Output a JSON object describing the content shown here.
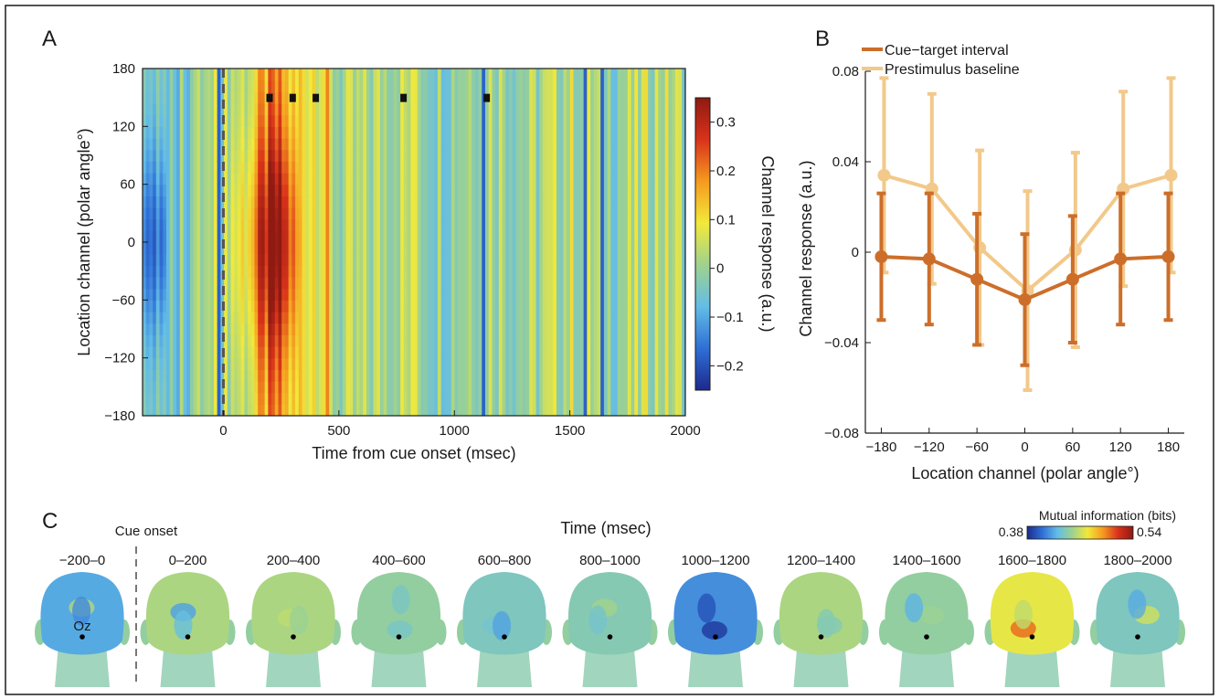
{
  "panels": {
    "a_label": "A",
    "b_label": "B",
    "c_label": "C"
  },
  "chart_data": [
    {
      "type": "heatmap",
      "panel": "A",
      "xlabel": "Time from cue onset (msec)",
      "ylabel": "Location channel (polar angle°)",
      "xlim": [
        -350,
        2000
      ],
      "ylim": [
        -180,
        180
      ],
      "x_ticks": [
        0,
        500,
        1000,
        1500,
        2000
      ],
      "y_ticks": [
        -180,
        -120,
        -60,
        0,
        60,
        120,
        180
      ],
      "cue_onset_line_x": 0,
      "significant_times": [
        200,
        300,
        400,
        780,
        1140
      ],
      "colorbar": {
        "label": "Channel response (a.u.)",
        "ticks": [
          -0.2,
          -0.1,
          0,
          0.1,
          0.2,
          0.3
        ],
        "range": [
          -0.25,
          0.35
        ],
        "colormap": [
          "#1c2a8c",
          "#2f6fd6",
          "#63bde6",
          "#9fd28e",
          "#f2e93a",
          "#f59a1f",
          "#d9321b",
          "#8e1a12"
        ]
      }
    },
    {
      "type": "line",
      "panel": "B",
      "xlabel": "Location channel (polar angle°)",
      "ylabel": "Channel response (a.u.)",
      "x": [
        -180,
        -120,
        -60,
        0,
        60,
        120,
        180
      ],
      "x_tick_labels": [
        "−180",
        "−120",
        "−60",
        "0",
        "60",
        "120",
        "180"
      ],
      "xlim": [
        -200,
        200
      ],
      "ylim": [
        -0.08,
        0.08
      ],
      "y_ticks": [
        -0.08,
        -0.04,
        0,
        0.04,
        0.08
      ],
      "y_tick_labels": [
        "−0.08",
        "−0.04",
        "0",
        "0.04",
        "0.08"
      ],
      "legend_position": "top-left",
      "series": [
        {
          "name": "Cue−target interval",
          "color": "#cc6e2a",
          "values": [
            -0.002,
            -0.003,
            -0.012,
            -0.021,
            -0.012,
            -0.003,
            -0.002
          ],
          "error": [
            0.028,
            0.029,
            0.029,
            0.029,
            0.028,
            0.029,
            0.028
          ]
        },
        {
          "name": "Prestimulus baseline",
          "color": "#f2c98a",
          "values": [
            0.034,
            0.028,
            0.002,
            -0.017,
            0.001,
            0.028,
            0.034
          ],
          "error": [
            0.043,
            0.042,
            0.043,
            0.044,
            0.043,
            0.043,
            0.043
          ]
        }
      ]
    },
    {
      "type": "other",
      "panel": "C",
      "description_title": "Time (msec)",
      "cue_onset_label": "Cue onset",
      "electrode_label": "Oz",
      "colorbar": {
        "label": "Mutual information (bits)",
        "min_label": "0.38",
        "max_label": "0.54"
      },
      "windows": [
        {
          "label": "−200–0",
          "level": 0.25
        },
        {
          "label": "0–200",
          "level": 0.45
        },
        {
          "label": "200–400",
          "level": 0.45
        },
        {
          "label": "400–600",
          "level": 0.4
        },
        {
          "label": "600–800",
          "level": 0.35
        },
        {
          "label": "800–1000",
          "level": 0.37
        },
        {
          "label": "1000–1200",
          "level": 0.2
        },
        {
          "label": "1200–1400",
          "level": 0.45
        },
        {
          "label": "1400–1600",
          "level": 0.4
        },
        {
          "label": "1600–1800",
          "level": 0.55
        },
        {
          "label": "1800–2000",
          "level": 0.35
        }
      ]
    }
  ]
}
